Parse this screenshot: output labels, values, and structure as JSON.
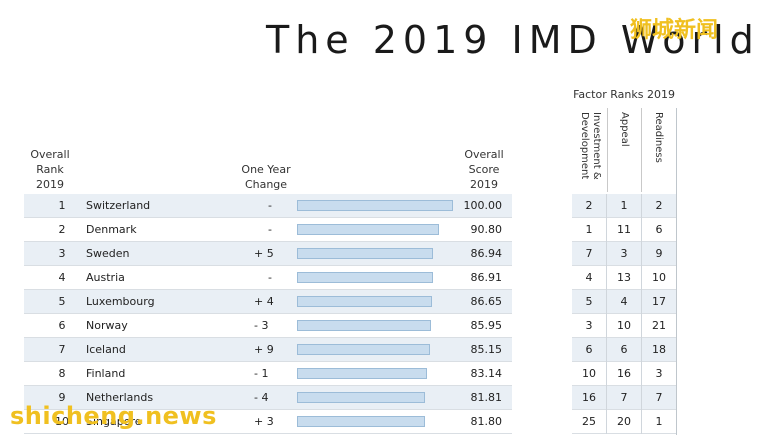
{
  "title": "The 2019 IMD World",
  "watermark_top": "狮城新闻",
  "watermark_bottom": "shicheng.news",
  "headers": {
    "rank": [
      "Overall",
      "Rank",
      "2019"
    ],
    "change": [
      "One Year",
      "Change"
    ],
    "score": [
      "Overall",
      "Score",
      "2019"
    ],
    "factor_title": "Factor Ranks 2019",
    "factor_cols": [
      "Investment & Development",
      "Appeal",
      "Readiness"
    ]
  },
  "rows": [
    {
      "rank": "1",
      "country": "Switzerland",
      "change": "-",
      "score": "100.00",
      "score_value": 100.0,
      "f": [
        "2",
        "1",
        "2"
      ]
    },
    {
      "rank": "2",
      "country": "Denmark",
      "change": "-",
      "score": "90.80",
      "score_value": 90.8,
      "f": [
        "1",
        "11",
        "6"
      ]
    },
    {
      "rank": "3",
      "country": "Sweden",
      "change": "+ 5",
      "score": "86.94",
      "score_value": 86.94,
      "f": [
        "7",
        "3",
        "9"
      ]
    },
    {
      "rank": "4",
      "country": "Austria",
      "change": "-",
      "score": "86.91",
      "score_value": 86.91,
      "f": [
        "4",
        "13",
        "10"
      ]
    },
    {
      "rank": "5",
      "country": "Luxembourg",
      "change": "+ 4",
      "score": "86.65",
      "score_value": 86.65,
      "f": [
        "5",
        "4",
        "17"
      ]
    },
    {
      "rank": "6",
      "country": "Norway",
      "change": "- 3",
      "score": "85.95",
      "score_value": 85.95,
      "f": [
        "3",
        "10",
        "21"
      ]
    },
    {
      "rank": "7",
      "country": "Iceland",
      "change": "+ 9",
      "score": "85.15",
      "score_value": 85.15,
      "f": [
        "6",
        "6",
        "18"
      ]
    },
    {
      "rank": "8",
      "country": "Finland",
      "change": "- 1",
      "score": "83.14",
      "score_value": 83.14,
      "f": [
        "10",
        "16",
        "3"
      ]
    },
    {
      "rank": "9",
      "country": "Netherlands",
      "change": "- 4",
      "score": "81.81",
      "score_value": 81.81,
      "f": [
        "16",
        "7",
        "7"
      ]
    },
    {
      "rank": "10",
      "country": "Singapore",
      "change": "+ 3",
      "score": "81.80",
      "score_value": 81.8,
      "f": [
        "25",
        "20",
        "1"
      ]
    }
  ],
  "colors": {
    "shade": "#e9eff5",
    "bar_fill": "#c8dcee",
    "bar_border": "#9cbcd8",
    "watermark": "#f0c020"
  }
}
